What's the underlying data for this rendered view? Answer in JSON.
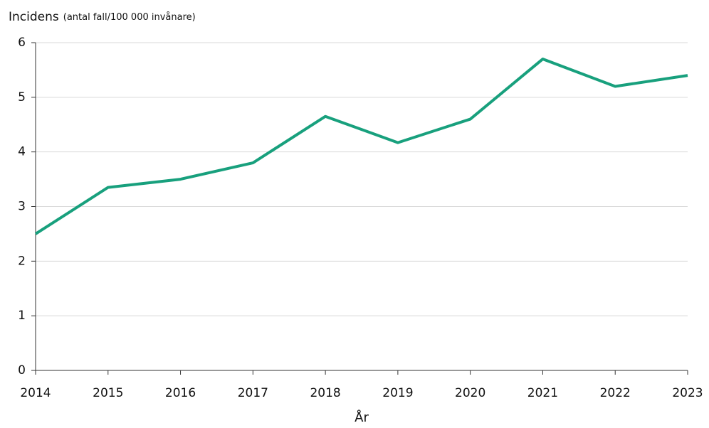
{
  "chart_data": {
    "type": "line",
    "ylabel": "Incidens",
    "ylabel_unit": "(antal fall/100 000 invånare)",
    "xlabel": "År",
    "x": [
      2014,
      2015,
      2016,
      2017,
      2018,
      2019,
      2020,
      2021,
      2022,
      2023
    ],
    "values": [
      2.5,
      3.35,
      3.5,
      3.8,
      4.65,
      4.17,
      4.6,
      5.7,
      5.2,
      5.4
    ],
    "color": "#18a07d",
    "xlim": [
      2014,
      2023
    ],
    "xticks": [
      2014,
      2015,
      2016,
      2017,
      2018,
      2019,
      2020,
      2021,
      2022,
      2023
    ],
    "ylim": [
      0,
      6
    ],
    "yticks": [
      0,
      1,
      2,
      3,
      4,
      5,
      6
    ],
    "grid": true
  }
}
